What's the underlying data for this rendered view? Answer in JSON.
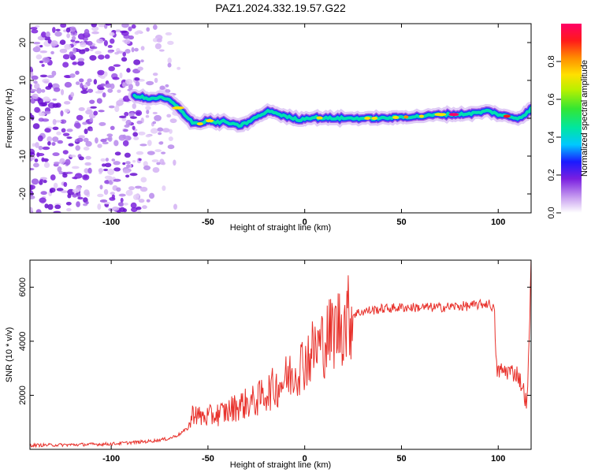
{
  "title": "PAZ1.2024.332.19.57.G22",
  "colors": {
    "snr_line": "#e8312b",
    "ridge": "#00e0b0",
    "speckle": "#8a2be2"
  },
  "chart_data": [
    {
      "type": "heatmap",
      "name": "spectrogram",
      "xlabel": "Height of straight line (km)",
      "ylabel": "Frequency (Hz)",
      "xlim": [
        -142,
        117
      ],
      "ylim": [
        -25,
        25
      ],
      "xticks": [
        -100,
        -50,
        0,
        50,
        100
      ],
      "xtick_labels": [
        "-100",
        "-50",
        "0",
        "50",
        "100"
      ],
      "yticks": [
        -20,
        -10,
        0,
        10,
        20
      ],
      "ytick_labels": [
        "-20",
        "-10",
        "0",
        "10",
        "20"
      ],
      "ridge": {
        "x": [
          -88,
          -84,
          -80,
          -75,
          -70,
          -66,
          -62,
          -58,
          -54,
          -50,
          -46,
          -42,
          -38,
          -34,
          -30,
          -26,
          -22,
          -18,
          -14,
          -10,
          -6,
          -2,
          0,
          5,
          10,
          20,
          30,
          40,
          50,
          60,
          70,
          80,
          90,
          95,
          100,
          105,
          110,
          114,
          117
        ],
        "y": [
          6,
          5.5,
          5,
          5.5,
          4.8,
          3,
          1,
          -1,
          -1.5,
          -0.5,
          -1.2,
          -0.8,
          -1.5,
          -2,
          -1.2,
          0,
          1,
          2,
          1.2,
          0.5,
          0,
          -0.5,
          0,
          0.2,
          0,
          0,
          0,
          0,
          0.3,
          0.5,
          1,
          1,
          1.5,
          2,
          1,
          0.5,
          0,
          1,
          2.5
        ]
      },
      "noise_region_x": [
        -142,
        -65
      ],
      "colorbar": {
        "label": "Normalized spectral amplitude",
        "range": [
          0,
          1
        ],
        "ticks": [
          0.0,
          0.2,
          0.4,
          0.6,
          0.8
        ],
        "tick_labels": [
          "0.0",
          "0.2",
          "0.4",
          "0.6",
          "0.8"
        ]
      }
    },
    {
      "type": "line",
      "name": "snr",
      "xlabel": "Height of straight line (km)",
      "ylabel": "SNR (10 * v/v)",
      "xlim": [
        -142,
        117
      ],
      "ylim": [
        0,
        7000
      ],
      "xticks": [
        -100,
        -50,
        0,
        50,
        100
      ],
      "xtick_labels": [
        "-100",
        "-50",
        "0",
        "50",
        "100"
      ],
      "yticks": [
        2000,
        4000,
        6000
      ],
      "ytick_labels": [
        "2000",
        "4000",
        "6000"
      ],
      "x": [
        -142,
        -120,
        -100,
        -90,
        -80,
        -70,
        -65,
        -60,
        -57,
        -55,
        -50,
        -45,
        -40,
        -35,
        -30,
        -25,
        -20,
        -15,
        -10,
        -5,
        0,
        5,
        10,
        15,
        20,
        25,
        30,
        40,
        50,
        60,
        70,
        80,
        85,
        90,
        95,
        98,
        99,
        100,
        105,
        110,
        113,
        115,
        117
      ],
      "y": [
        150,
        170,
        200,
        250,
        300,
        400,
        550,
        800,
        1500,
        1200,
        1200,
        1300,
        1400,
        1600,
        1700,
        1800,
        2100,
        2300,
        2600,
        2900,
        3300,
        3700,
        4000,
        4400,
        4700,
        5000,
        5100,
        5200,
        5250,
        5250,
        5250,
        5300,
        5300,
        5350,
        5400,
        5200,
        3000,
        2900,
        2900,
        2800,
        2200,
        1600,
        6800
      ]
    }
  ]
}
